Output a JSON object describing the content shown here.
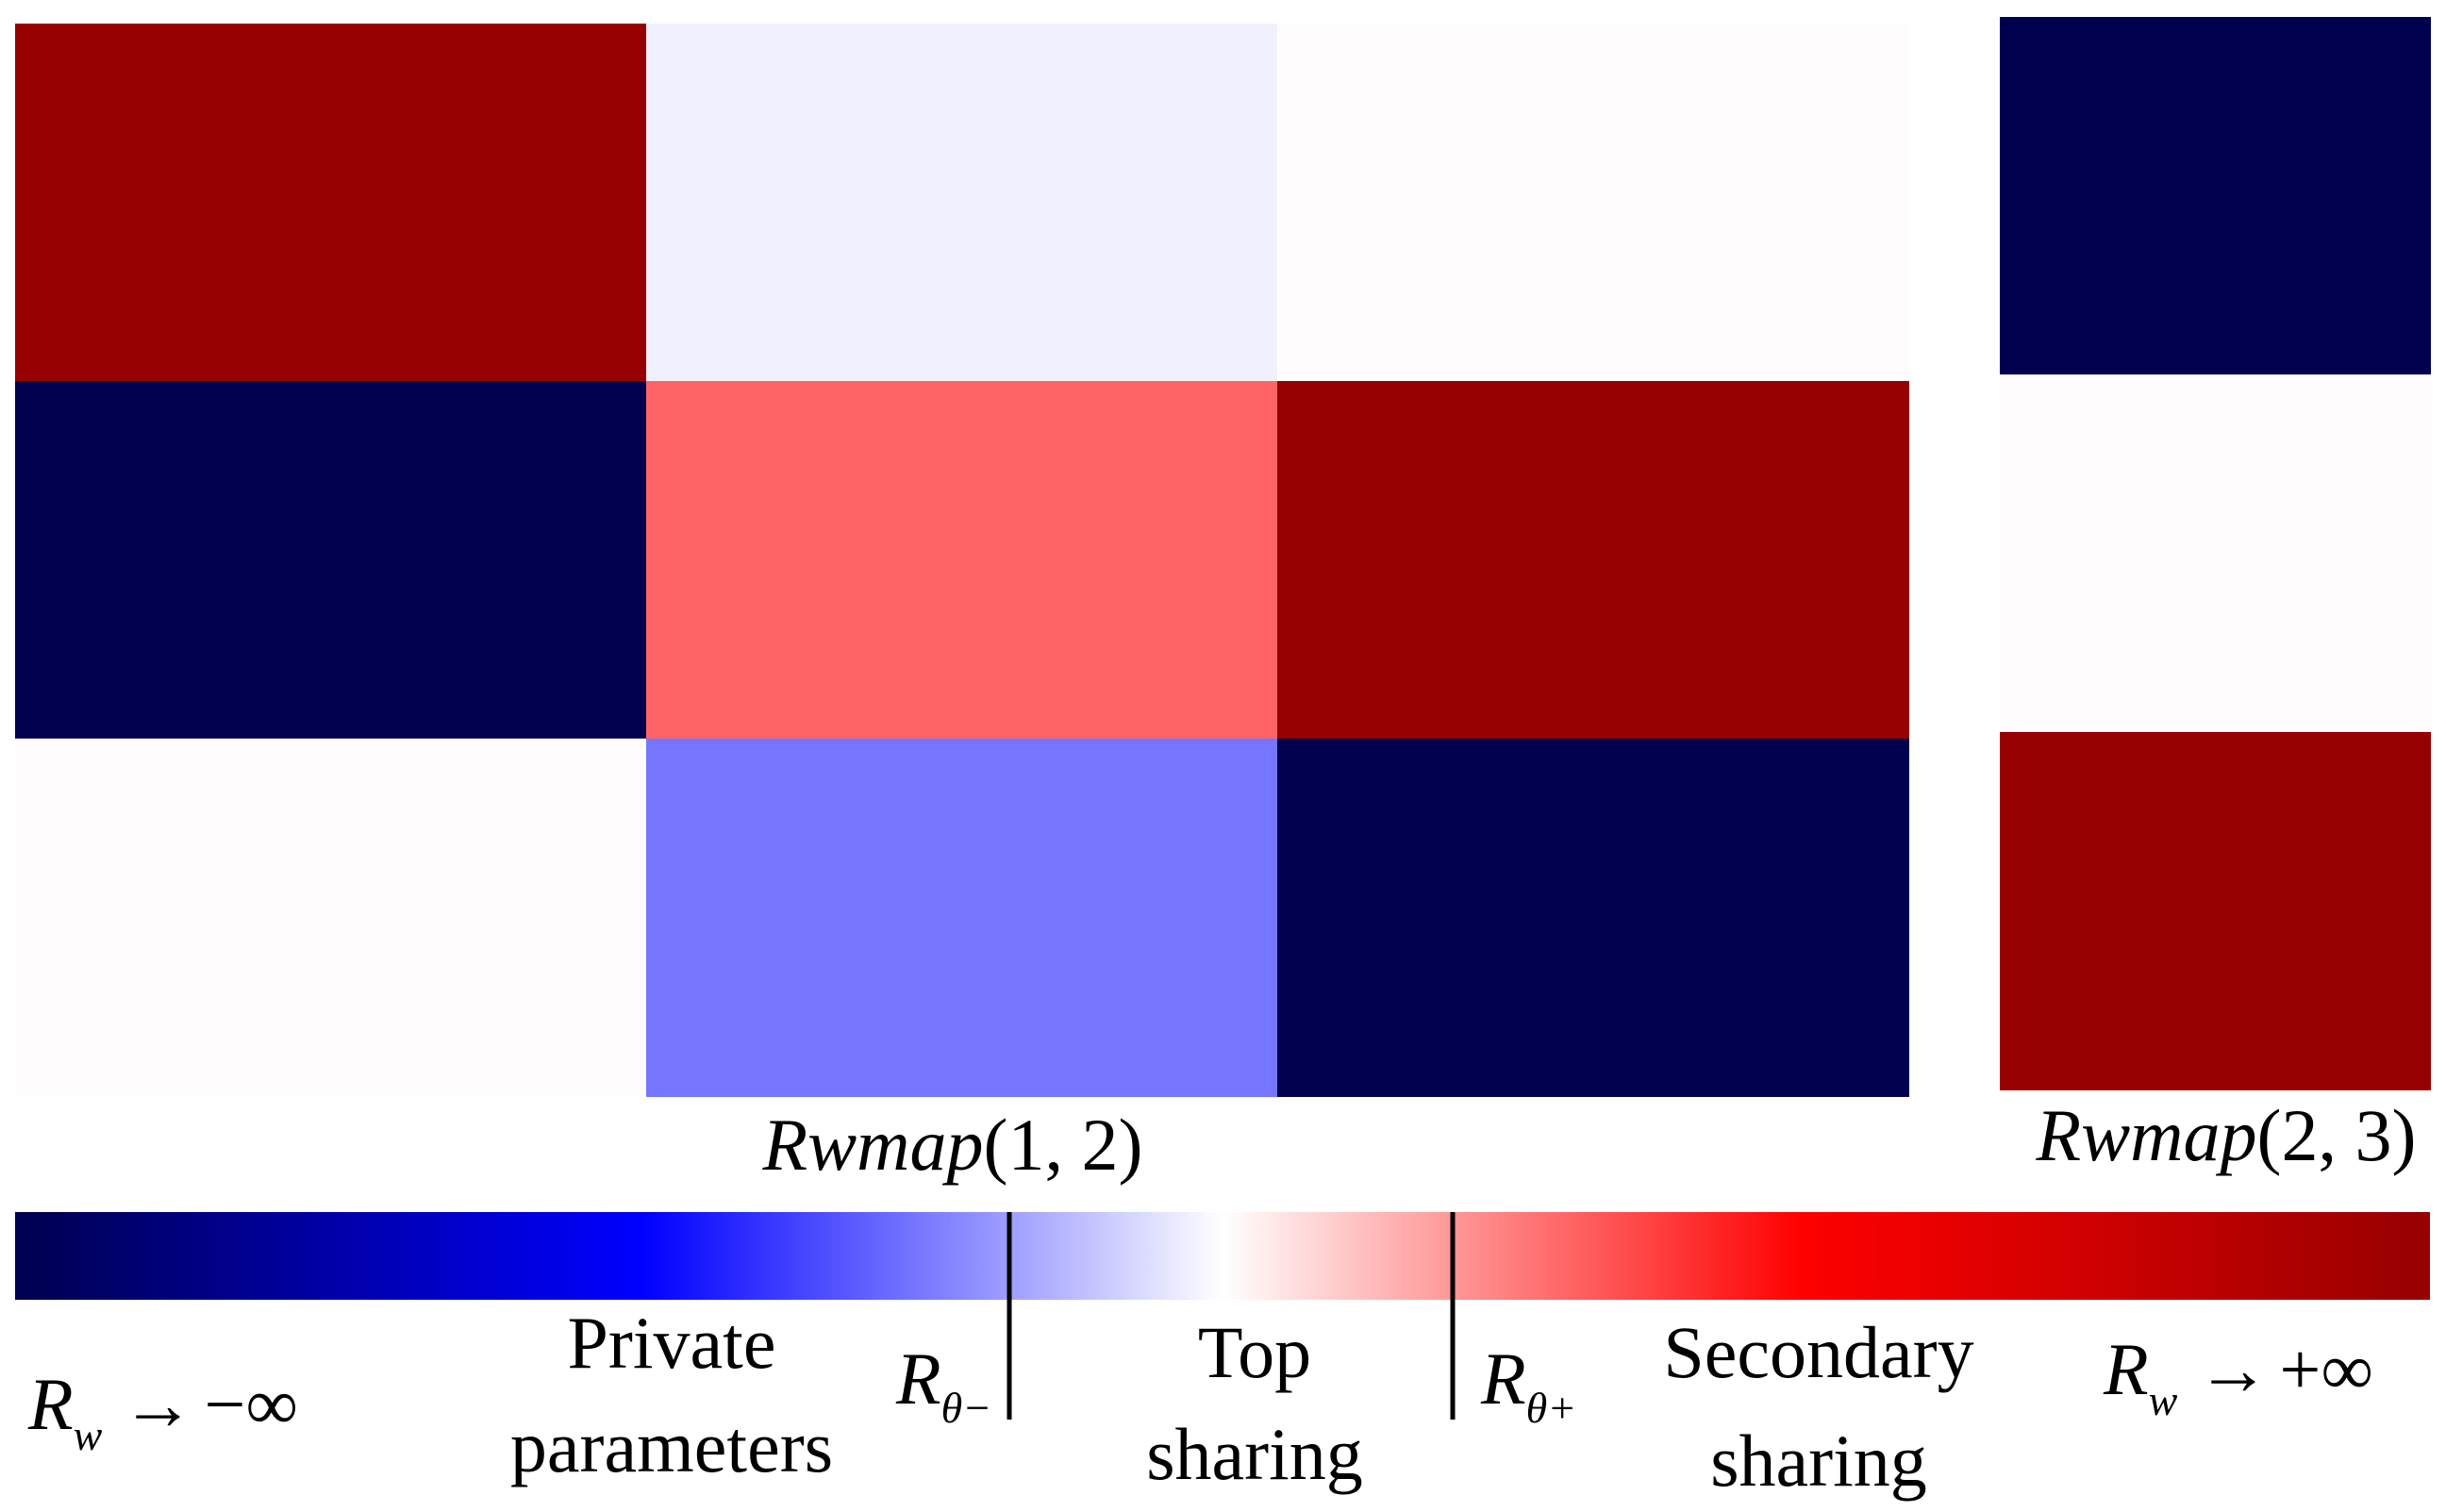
{
  "chart_data": [
    {
      "type": "heatmap",
      "label_main": "Rwmap",
      "label_args": "(1, 2)",
      "rows": 3,
      "cols": 3,
      "cell_colors": [
        [
          "#960000",
          "#f0f0ff",
          "#fffcfe"
        ],
        [
          "#00004f",
          "#ff6464",
          "#960000"
        ],
        [
          "#fffcfe",
          "#7575ff",
          "#00004f"
        ]
      ]
    },
    {
      "type": "heatmap",
      "label_main": "Rwmap",
      "label_args": "(2, 3)",
      "rows": 3,
      "cols": 1,
      "cell_colors": [
        [
          "#00004f"
        ],
        [
          "#fffcfe"
        ],
        [
          "#960000"
        ]
      ]
    }
  ],
  "colorbar": {
    "gradient_stops": [
      {
        "offset": 0.0,
        "color": "#00004f"
      },
      {
        "offset": 0.26,
        "color": "#0000ff"
      },
      {
        "offset": 0.41,
        "color": "#9c9cff"
      },
      {
        "offset": 0.5,
        "color": "#ffffff"
      },
      {
        "offset": 0.59,
        "color": "#ff9c9c"
      },
      {
        "offset": 0.74,
        "color": "#ff0000"
      },
      {
        "offset": 1.0,
        "color": "#960000"
      }
    ],
    "left_end": {
      "symbol": "R",
      "sub": "w",
      "arrow": "→",
      "limit": "−∞"
    },
    "right_end": {
      "symbol": "R",
      "sub": "w",
      "arrow": "→",
      "limit": "+∞"
    },
    "threshold_neg": {
      "symbol": "R",
      "sub": "θ−"
    },
    "threshold_pos": {
      "symbol": "R",
      "sub": "θ+"
    },
    "regions": [
      {
        "line1": "Private",
        "line2": "parameters"
      },
      {
        "line1": "Top",
        "line2": "sharing"
      },
      {
        "line1": "Secondary",
        "line2": "sharing"
      }
    ]
  }
}
